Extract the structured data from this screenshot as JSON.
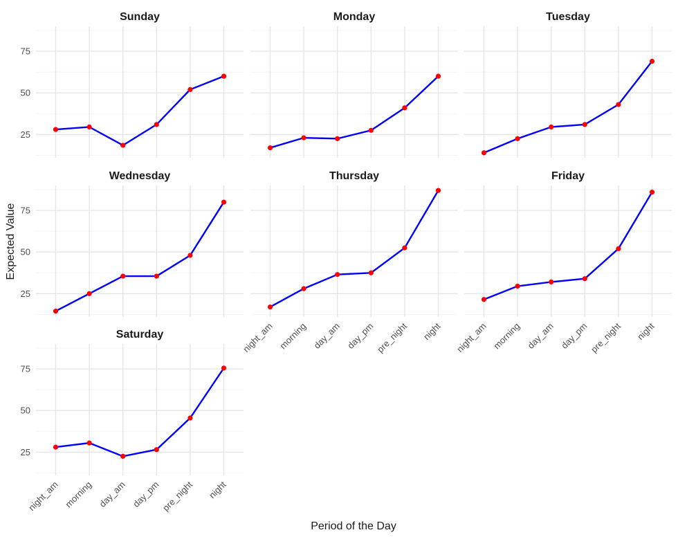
{
  "chart_data": {
    "type": "line",
    "xlabel": "Period of the Day",
    "ylabel": "Expected Value",
    "categories": [
      "night_am",
      "morning",
      "day_am",
      "day_pm",
      "pre_night",
      "night"
    ],
    "y_ticks": [
      25,
      50,
      75
    ],
    "ylim": [
      11,
      90
    ],
    "grid": true,
    "line_color": "#0000ff",
    "point_color": "#ff0000",
    "facets": [
      {
        "title": "Sunday",
        "values": [
          28,
          29.5,
          18.5,
          31,
          52,
          60
        ]
      },
      {
        "title": "Monday",
        "values": [
          17,
          23,
          22.5,
          27.5,
          41,
          60
        ]
      },
      {
        "title": "Tuesday",
        "values": [
          14,
          22.5,
          29.5,
          31,
          43,
          69
        ]
      },
      {
        "title": "Wednesday",
        "values": [
          14.5,
          25,
          35.5,
          35.5,
          48,
          80
        ]
      },
      {
        "title": "Thursday",
        "values": [
          17,
          28,
          36.5,
          37.5,
          52.5,
          87
        ]
      },
      {
        "title": "Friday",
        "values": [
          21.5,
          29.5,
          32,
          34,
          52,
          86
        ]
      },
      {
        "title": "Saturday",
        "values": [
          28,
          30.5,
          22.5,
          26.5,
          45.5,
          75.5
        ]
      }
    ]
  }
}
